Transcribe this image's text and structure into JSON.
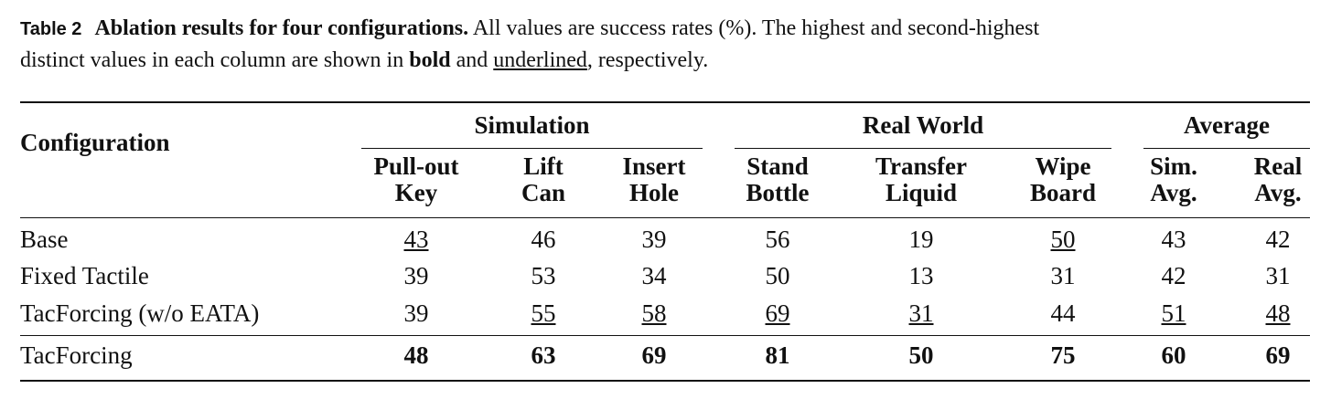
{
  "caption": {
    "label": "Table 2",
    "title": "Ablation results for four configurations.",
    "line1": "All values are success rates (%). The highest and second-highest",
    "line2": "distinct values in each column are shown in",
    "bold_word": "bold",
    "joiner": "and",
    "underline_word": "underlined",
    "ending": ", respectively."
  },
  "table": {
    "row_header": "Configuration",
    "groups": [
      {
        "label": "Simulation",
        "columns": [
          [
            "Pull-out",
            "Key"
          ],
          [
            "Lift",
            "Can"
          ],
          [
            "Insert",
            "Hole"
          ]
        ]
      },
      {
        "label": "Real World",
        "columns": [
          [
            "Stand",
            "Bottle"
          ],
          [
            "Transfer",
            "Liquid"
          ],
          [
            "Wipe",
            "Board"
          ]
        ]
      },
      {
        "label": "Average",
        "columns": [
          [
            "Sim.",
            "Avg."
          ],
          [
            "Real",
            "Avg."
          ]
        ]
      }
    ],
    "rows": [
      {
        "label": "Base",
        "values": [
          43,
          46,
          39,
          56,
          19,
          50,
          43,
          42
        ],
        "emphasis": [
          "underline",
          "none",
          "none",
          "none",
          "none",
          "underline",
          "none",
          "none"
        ]
      },
      {
        "label": "Fixed Tactile",
        "values": [
          39,
          53,
          34,
          50,
          13,
          31,
          42,
          31
        ],
        "emphasis": [
          "none",
          "none",
          "none",
          "none",
          "none",
          "none",
          "none",
          "none"
        ]
      },
      {
        "label": "TacForcing (w/o EATA)",
        "values": [
          39,
          55,
          58,
          69,
          31,
          44,
          51,
          48
        ],
        "emphasis": [
          "none",
          "underline",
          "underline",
          "underline",
          "underline",
          "none",
          "underline",
          "underline"
        ]
      },
      {
        "label": "TacForcing",
        "values": [
          48,
          63,
          69,
          81,
          50,
          75,
          60,
          69
        ],
        "emphasis": [
          "bold",
          "bold",
          "bold",
          "bold",
          "bold",
          "bold",
          "bold",
          "bold"
        ]
      }
    ]
  }
}
